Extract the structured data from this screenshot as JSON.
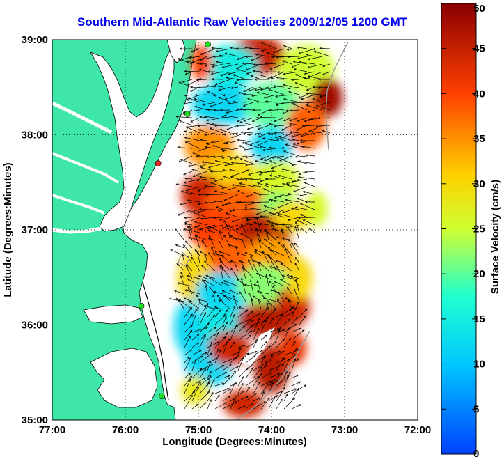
{
  "title": "Southern Mid-Atlantic Raw Velocities 2009/12/05 1200 GMT",
  "axes": {
    "xlabel": "Longitude (Degrees:Minutes)",
    "ylabel": "Latitude (Degrees:Minutes)",
    "xlim": [
      -77,
      -72
    ],
    "ylim": [
      35,
      39
    ],
    "xticks": [
      "77:00",
      "76:00",
      "75:00",
      "74:00",
      "73:00",
      "72:00"
    ],
    "yticks": [
      "35:00",
      "36:00",
      "37:00",
      "38:00",
      "39:00"
    ],
    "grid": "dotted"
  },
  "colorbar": {
    "label": "Surface Velocity (cm/s)",
    "ticks": [
      "0",
      "5",
      "10",
      "15",
      "20",
      "25",
      "30",
      "35",
      "40",
      "45",
      "50"
    ],
    "range": [
      0,
      50
    ],
    "colormap": "jet"
  },
  "colors": {
    "land": "#3ee6a8",
    "coast": "#000000",
    "water": "#ffffff",
    "stations": "#22dd22",
    "station_alert": "#ee2222"
  },
  "stations": [
    {
      "lon": -74.87,
      "lat": 38.95,
      "status": "ok"
    },
    {
      "lon": -75.15,
      "lat": 38.22,
      "status": "ok"
    },
    {
      "lon": -75.55,
      "lat": 37.7,
      "status": "alert"
    },
    {
      "lon": -75.78,
      "lat": 36.2,
      "status": "ok"
    },
    {
      "lon": -75.5,
      "lat": 35.25,
      "status": "ok"
    }
  ]
}
